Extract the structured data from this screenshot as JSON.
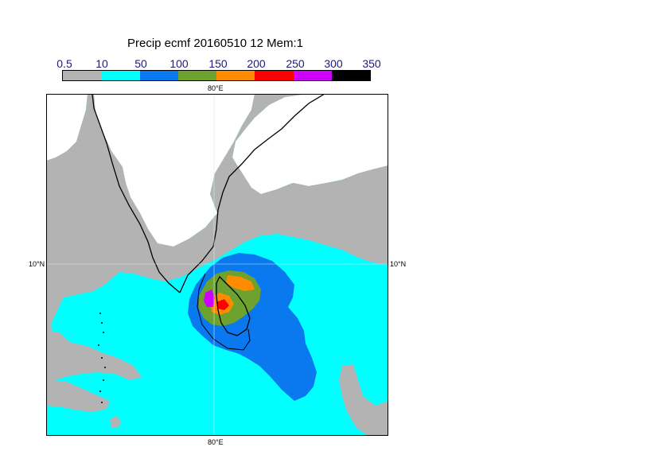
{
  "title": "Precip ecmf 20160510 12 Mem:1",
  "legend": {
    "labels": [
      "0.5",
      "10",
      "50",
      "100",
      "150",
      "200",
      "250",
      "300",
      "350"
    ],
    "colors": [
      "#b3b3b3",
      "#00ffff",
      "#0a78ee",
      "#6ea22e",
      "#ff8c00",
      "#ff0000",
      "#d000ff",
      "#000000"
    ]
  },
  "map": {
    "lon_label_top": "80°E",
    "lon_label_bottom": "80°E",
    "lat_label_left": "10°N",
    "lat_label_right": "10°N",
    "background_color": "#ffffff",
    "border_color": "#000000"
  }
}
